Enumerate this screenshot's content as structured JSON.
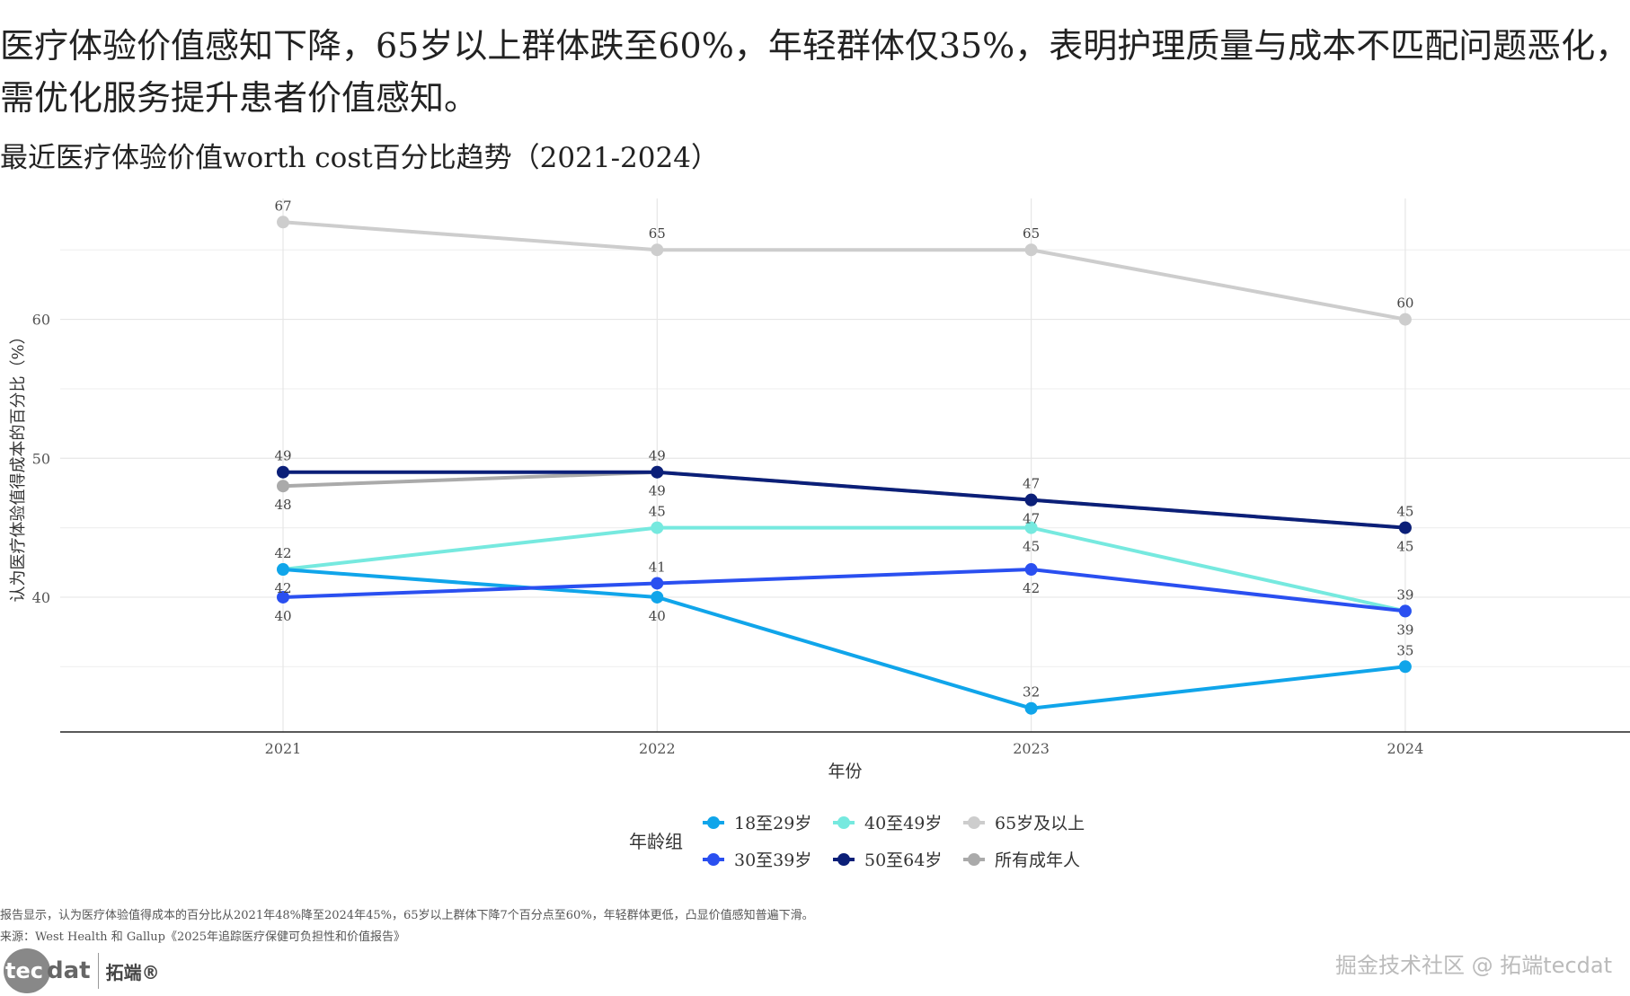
{
  "title": "医疗体验价值感知下降，65岁以上群体跌至60%，年轻群体仅35%，表明护理质量与成本不匹配问题恶化，需优化服务提升患者价值感知。",
  "subtitle": "最近医疗体验价值worth cost百分比趋势（2021-2024）",
  "notes": [
    "报告显示，认为医疗体验值得成本的百分比从2021年48%降至2024年45%，65岁以上群体下降7个百分点至60%，年轻群体更低，凸显价值感知普遍下滑。",
    "来源：West Health 和 Gallup《2025年追踪医疗保健可负担性和价值报告》"
  ],
  "logo": {
    "mark": "tec",
    "mark2": "dat",
    "brand": "拓端®"
  },
  "watermark": "掘金技术社区 @ 拓端tecdat",
  "chart_data": {
    "type": "line",
    "xlabel": "年份",
    "ylabel": "认为医疗体验值得成本的百分比（%）",
    "x": [
      2021,
      2022,
      2023,
      2024
    ],
    "yticks": [
      40,
      50,
      60
    ],
    "ylim": [
      30.3,
      68.7
    ],
    "grid": true,
    "legend_title": "年龄组",
    "legend_position": "bottom",
    "series": [
      {
        "name": "18至29岁",
        "color": "#10a5ea",
        "values": [
          42,
          40,
          32,
          35
        ]
      },
      {
        "name": "40至49岁",
        "color": "#76e9df",
        "values": [
          42,
          45,
          45,
          39
        ]
      },
      {
        "name": "65岁及以上",
        "color": "#cdcdcd",
        "values": [
          67,
          65,
          65,
          60
        ]
      },
      {
        "name": "30至39岁",
        "color": "#2a4ff0",
        "values": [
          40,
          41,
          42,
          39
        ]
      },
      {
        "name": "50至64岁",
        "color": "#0b1f78",
        "values": [
          49,
          49,
          47,
          45
        ]
      },
      {
        "name": "所有成年人",
        "color": "#aaaaaa",
        "values": [
          48,
          49,
          47,
          45
        ]
      }
    ]
  }
}
